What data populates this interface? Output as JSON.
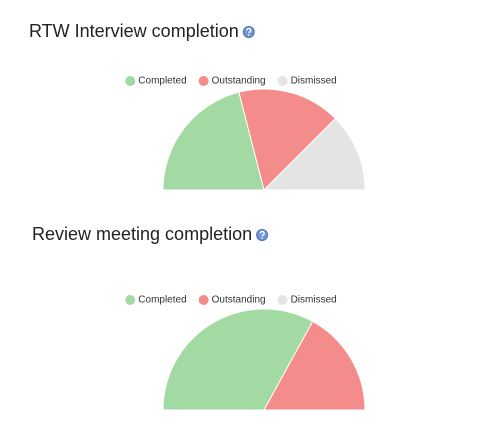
{
  "chart_data": [
    {
      "type": "pie",
      "title": "RTW Interview completion",
      "categories": [
        "Completed",
        "Outstanding",
        "Dismissed"
      ],
      "values": [
        42,
        33,
        25
      ],
      "colors": [
        "#a3d9a2",
        "#f48c8c",
        "#e4e4e4"
      ]
    },
    {
      "type": "pie",
      "title": "Review meeting completion",
      "categories": [
        "Completed",
        "Outstanding",
        "Dismissed"
      ],
      "values": [
        66,
        34,
        0
      ],
      "colors": [
        "#a3d9a2",
        "#f48c8c",
        "#e4e4e4"
      ]
    }
  ]
}
